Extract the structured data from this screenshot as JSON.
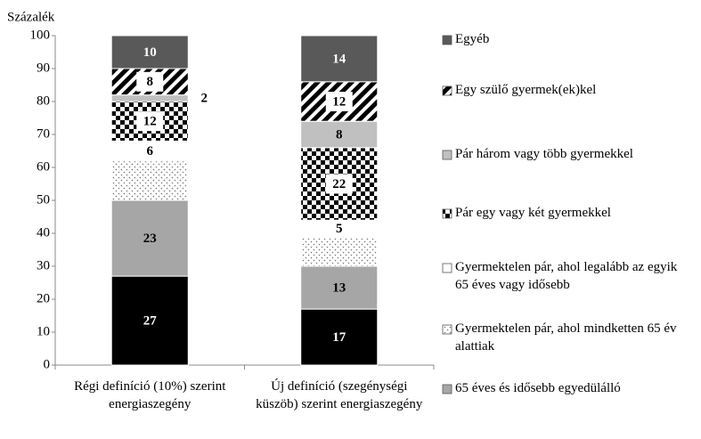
{
  "chart_data": {
    "type": "stacked_bar",
    "y_axis_label": "Százalék",
    "categories": [
      "Régi definíció (10%) szerint energiaszegény",
      "Új definíció (szegénységi küszöb) szerint energiaszegény"
    ],
    "ylim": [
      0,
      100
    ],
    "yticks": [
      0,
      10,
      20,
      30,
      40,
      50,
      60,
      70,
      80,
      90,
      100
    ],
    "legend": "right",
    "series": [
      {
        "color": "#000000",
        "values": [
          27,
          17
        ],
        "value_labels": [
          "27",
          "17"
        ]
      },
      {
        "name": "65 éves és idősebb egyedülálló",
        "color": "#a6a6a6",
        "values": [
          23,
          13
        ],
        "value_labels": [
          "23",
          "13"
        ]
      },
      {
        "name": "Gyermektelen pár, ahol mindketten 65 év alattiak",
        "color": "#ffffff",
        "pattern": "dots",
        "values": [
          12,
          9
        ]
      },
      {
        "name": "Gyermektelen pár, ahol legalább az egyik 65 éves vagy idősebb",
        "color": "#ffffff",
        "values": [
          6,
          5
        ],
        "value_labels": [
          "6",
          "5"
        ]
      },
      {
        "name": "Pár egy vagy két gyermekkel",
        "color": "#000000",
        "pattern": "checker",
        "values": [
          12,
          22
        ],
        "value_labels": [
          "12",
          "22"
        ]
      },
      {
        "name": "Pár három vagy több gyermekkel",
        "color": "#c0c0c0",
        "values": [
          2,
          8
        ],
        "value_labels": [
          "2",
          "8"
        ]
      },
      {
        "name": "Egy szülő gyermek(ek)kel",
        "color": "#000000",
        "pattern": "hatch",
        "values": [
          8,
          12
        ],
        "value_labels": [
          "8",
          "12"
        ]
      },
      {
        "name": "Egyéb",
        "color": "#595959",
        "values": [
          10,
          14
        ],
        "value_labels": [
          "10",
          "14"
        ]
      }
    ]
  }
}
